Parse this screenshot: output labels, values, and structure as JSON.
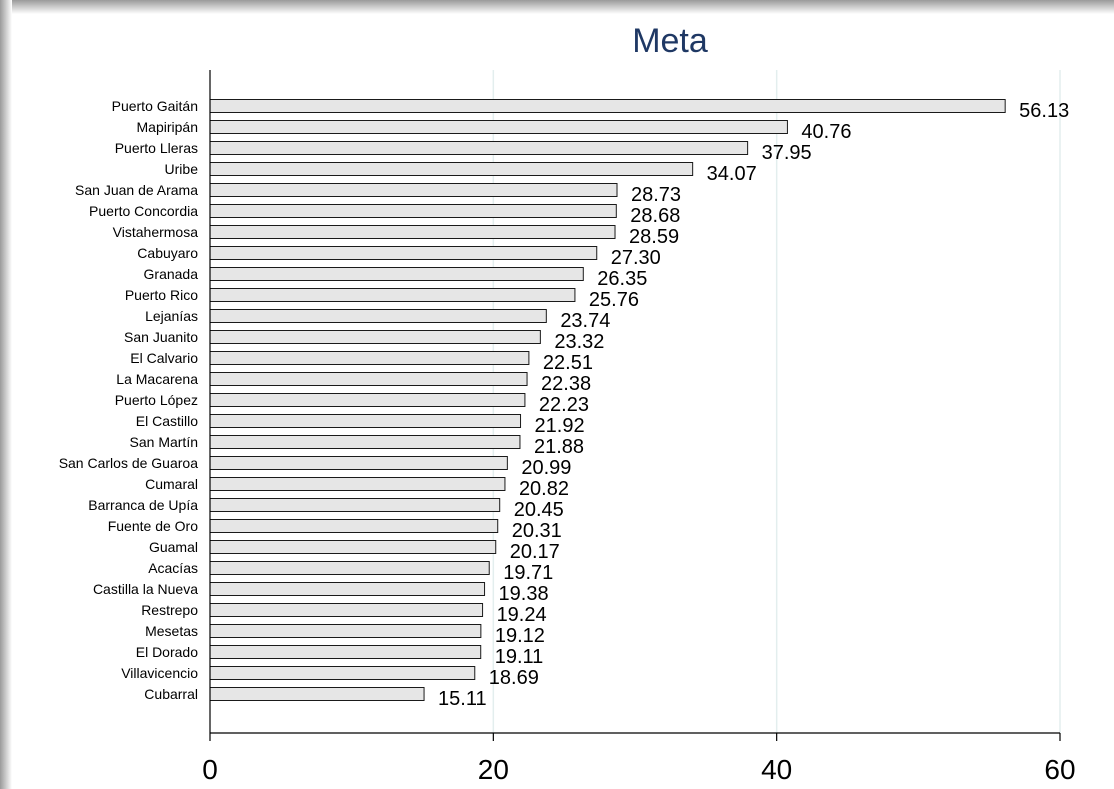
{
  "chart_data": {
    "type": "bar",
    "orientation": "horizontal",
    "title": "Meta",
    "xlabel": "",
    "ylabel": "",
    "xlim": [
      0,
      60
    ],
    "x_ticks": [
      0,
      20,
      40,
      60
    ],
    "grid": true,
    "categories": [
      "Puerto Gaitán",
      "Mapiripán",
      "Puerto Lleras",
      "Uribe",
      "San Juan de Arama",
      "Puerto Concordia",
      "Vistahermosa",
      "Cabuyaro",
      "Granada",
      "Puerto Rico",
      "Lejanías",
      "San Juanito",
      "El Calvario",
      "La Macarena",
      "Puerto López",
      "El Castillo",
      "San Martín",
      "San Carlos de Guaroa",
      "Cumaral",
      "Barranca de Upía",
      "Fuente de Oro",
      "Guamal",
      "Acacías",
      "Castilla la Nueva",
      "Restrepo",
      "Mesetas",
      "El Dorado",
      "Villavicencio",
      "Cubarral"
    ],
    "values": [
      56.13,
      40.76,
      37.95,
      34.07,
      28.73,
      28.68,
      28.59,
      27.3,
      26.35,
      25.76,
      23.74,
      23.32,
      22.51,
      22.38,
      22.23,
      21.92,
      21.88,
      20.99,
      20.82,
      20.45,
      20.31,
      20.17,
      19.71,
      19.38,
      19.24,
      19.12,
      19.11,
      18.69,
      15.11
    ],
    "value_labels": [
      "56.13",
      "40.76",
      "37.95",
      "34.07",
      "28.73",
      "28.68",
      "28.59",
      "27.30",
      "26.35",
      "25.76",
      "23.74",
      "23.32",
      "22.51",
      "22.38",
      "22.23",
      "21.92",
      "21.88",
      "20.99",
      "20.82",
      "20.45",
      "20.31",
      "20.17",
      "19.71",
      "19.38",
      "19.24",
      "19.12",
      "19.11",
      "18.69",
      "15.11"
    ],
    "colors": {
      "bar_fill": "#e6e6e6",
      "bar_stroke": "#1a1a1a",
      "grid": "#e3eeee",
      "title": "#1f3864",
      "axis": "#000000"
    }
  }
}
